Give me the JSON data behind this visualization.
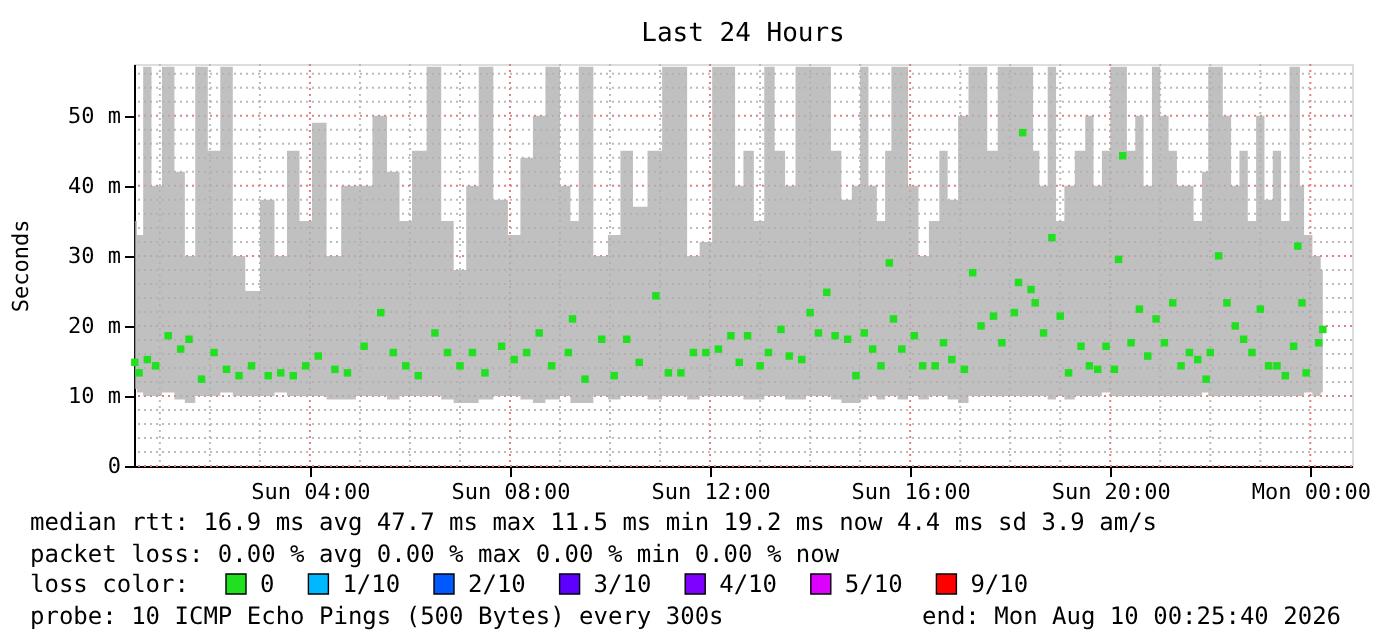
{
  "chart_data": {
    "type": "scatter",
    "title": "Last 24 Hours",
    "ylabel": "Seconds",
    "xlim": [
      "2026-08-09T00:29",
      "2026-08-10T00:50"
    ],
    "ylim": [
      0,
      57.4
    ],
    "xticks": [
      {
        "value": "2026-08-09T01:00",
        "label": null
      },
      {
        "value": "2026-08-09T02:00",
        "label": null
      },
      {
        "value": "2026-08-09T03:00",
        "label": null
      },
      {
        "value": "2026-08-09T04:00",
        "label": "Sun 04:00"
      },
      {
        "value": "2026-08-09T05:00",
        "label": null
      },
      {
        "value": "2026-08-09T06:00",
        "label": null
      },
      {
        "value": "2026-08-09T07:00",
        "label": null
      },
      {
        "value": "2026-08-09T08:00",
        "label": "Sun 08:00"
      },
      {
        "value": "2026-08-09T09:00",
        "label": null
      },
      {
        "value": "2026-08-09T10:00",
        "label": null
      },
      {
        "value": "2026-08-09T11:00",
        "label": null
      },
      {
        "value": "2026-08-09T12:00",
        "label": "Sun 12:00"
      },
      {
        "value": "2026-08-09T13:00",
        "label": null
      },
      {
        "value": "2026-08-09T14:00",
        "label": null
      },
      {
        "value": "2026-08-09T15:00",
        "label": null
      },
      {
        "value": "2026-08-09T16:00",
        "label": "Sun 16:00"
      },
      {
        "value": "2026-08-09T17:00",
        "label": null
      },
      {
        "value": "2026-08-09T18:00",
        "label": null
      },
      {
        "value": "2026-08-09T19:00",
        "label": null
      },
      {
        "value": "2026-08-09T20:00",
        "label": "Sun 20:00"
      },
      {
        "value": "2026-08-09T21:00",
        "label": null
      },
      {
        "value": "2026-08-09T22:00",
        "label": null
      },
      {
        "value": "2026-08-09T23:00",
        "label": null
      },
      {
        "value": "2026-08-10T00:00",
        "label": "Mon 00:00"
      }
    ],
    "yticks": [
      0,
      {
        "value": 2,
        "label": null
      },
      {
        "value": 4,
        "label": null
      },
      {
        "value": 6,
        "label": null
      },
      {
        "value": 8,
        "label": null
      },
      {
        "value": 10,
        "label": "10 m"
      },
      {
        "value": 12,
        "label": null
      },
      {
        "value": 14,
        "label": null
      },
      {
        "value": 16,
        "label": null
      },
      {
        "value": 18,
        "label": null
      },
      {
        "value": 20,
        "label": "20 m"
      },
      {
        "value": 22,
        "label": null
      },
      {
        "value": 24,
        "label": null
      },
      {
        "value": 26,
        "label": null
      },
      {
        "value": 28,
        "label": null
      },
      {
        "value": 30,
        "label": "30 m"
      },
      {
        "value": 32,
        "label": null
      },
      {
        "value": 34,
        "label": null
      },
      {
        "value": 36,
        "label": null
      },
      {
        "value": 38,
        "label": null
      },
      {
        "value": 40,
        "label": "40 m"
      },
      {
        "value": 42,
        "label": null
      },
      {
        "value": 44,
        "label": null
      },
      {
        "value": 46,
        "label": null
      },
      {
        "value": 48,
        "label": null
      },
      {
        "value": 50,
        "label": "50 m"
      },
      {
        "value": 52,
        "label": null
      },
      {
        "value": 54,
        "label": null
      },
      {
        "value": 56,
        "label": null
      }
    ],
    "grid": true,
    "legend": "bottom",
    "marker": "square",
    "legend_title": "loss color:",
    "series": [
      {
        "name": "0",
        "color": "#20e020",
        "x": [
          "2026-08-09T00:30",
          "2026-08-09T00:35",
          "2026-08-09T00:45",
          "2026-08-09T00:55",
          "2026-08-09T01:10",
          "2026-08-09T01:25",
          "2026-08-09T01:35",
          "2026-08-09T01:50",
          "2026-08-09T02:05",
          "2026-08-09T02:20",
          "2026-08-09T02:35",
          "2026-08-09T02:50",
          "2026-08-09T03:10",
          "2026-08-09T03:25",
          "2026-08-09T03:40",
          "2026-08-09T03:55",
          "2026-08-09T04:10",
          "2026-08-09T04:30",
          "2026-08-09T04:45",
          "2026-08-09T05:05",
          "2026-08-09T05:25",
          "2026-08-09T05:40",
          "2026-08-09T05:55",
          "2026-08-09T06:10",
          "2026-08-09T06:30",
          "2026-08-09T06:45",
          "2026-08-09T07:00",
          "2026-08-09T07:15",
          "2026-08-09T07:30",
          "2026-08-09T07:50",
          "2026-08-09T08:05",
          "2026-08-09T08:20",
          "2026-08-09T08:35",
          "2026-08-09T08:50",
          "2026-08-09T09:10",
          "2026-08-09T09:15",
          "2026-08-09T09:30",
          "2026-08-09T09:50",
          "2026-08-09T10:05",
          "2026-08-09T10:20",
          "2026-08-09T10:35",
          "2026-08-09T10:55",
          "2026-08-09T11:10",
          "2026-08-09T11:25",
          "2026-08-09T11:40",
          "2026-08-09T11:55",
          "2026-08-09T12:10",
          "2026-08-09T12:25",
          "2026-08-09T12:35",
          "2026-08-09T12:45",
          "2026-08-09T13:00",
          "2026-08-09T13:10",
          "2026-08-09T13:25",
          "2026-08-09T13:35",
          "2026-08-09T13:50",
          "2026-08-09T14:00",
          "2026-08-09T14:10",
          "2026-08-09T14:20",
          "2026-08-09T14:30",
          "2026-08-09T14:45",
          "2026-08-09T14:55",
          "2026-08-09T15:05",
          "2026-08-09T15:15",
          "2026-08-09T15:25",
          "2026-08-09T15:35",
          "2026-08-09T15:40",
          "2026-08-09T15:50",
          "2026-08-09T16:05",
          "2026-08-09T16:15",
          "2026-08-09T16:30",
          "2026-08-09T16:40",
          "2026-08-09T16:50",
          "2026-08-09T17:05",
          "2026-08-09T17:15",
          "2026-08-09T17:25",
          "2026-08-09T17:40",
          "2026-08-09T17:50",
          "2026-08-09T18:05",
          "2026-08-09T18:10",
          "2026-08-09T18:15",
          "2026-08-09T18:25",
          "2026-08-09T18:30",
          "2026-08-09T18:40",
          "2026-08-09T18:50",
          "2026-08-09T19:00",
          "2026-08-09T19:10",
          "2026-08-09T19:25",
          "2026-08-09T19:35",
          "2026-08-09T19:45",
          "2026-08-09T19:55",
          "2026-08-09T20:05",
          "2026-08-09T20:10",
          "2026-08-09T20:15",
          "2026-08-09T20:25",
          "2026-08-09T20:35",
          "2026-08-09T20:45",
          "2026-08-09T20:55",
          "2026-08-09T21:05",
          "2026-08-09T21:15",
          "2026-08-09T21:25",
          "2026-08-09T21:35",
          "2026-08-09T21:45",
          "2026-08-09T21:55",
          "2026-08-09T22:00",
          "2026-08-09T22:10",
          "2026-08-09T22:20",
          "2026-08-09T22:30",
          "2026-08-09T22:40",
          "2026-08-09T22:50",
          "2026-08-09T23:00",
          "2026-08-09T23:10",
          "2026-08-09T23:20",
          "2026-08-09T23:30",
          "2026-08-09T23:40",
          "2026-08-09T23:45",
          "2026-08-09T23:50",
          "2026-08-09T23:55",
          "2026-08-10T00:10",
          "2026-08-10T00:15"
        ],
        "values": [
          14.8,
          13.3,
          15.2,
          14.3,
          18.6,
          16.7,
          18.1,
          12.4,
          16.2,
          13.8,
          12.9,
          14.3,
          12.9,
          13.3,
          12.9,
          14.3,
          15.7,
          13.8,
          13.3,
          17.1,
          21.9,
          16.2,
          14.3,
          12.9,
          19,
          16.2,
          14.3,
          16.2,
          13.3,
          17.1,
          15.2,
          16.2,
          19,
          14.3,
          16.2,
          21,
          12.4,
          18.1,
          12.9,
          18.1,
          14.8,
          24.3,
          13.3,
          13.3,
          16.2,
          16.2,
          16.7,
          18.6,
          14.8,
          18.6,
          14.3,
          16.2,
          19.5,
          15.7,
          15.2,
          21.9,
          19,
          24.8,
          18.6,
          18.1,
          12.9,
          19,
          16.7,
          14.3,
          29,
          21,
          16.7,
          18.6,
          14.3,
          14.3,
          17.6,
          15.2,
          13.8,
          27.6,
          20,
          21.4,
          17.6,
          21.9,
          26.2,
          47.6,
          25.2,
          23.3,
          19,
          32.6,
          21.4,
          13.3,
          17.1,
          14.3,
          13.8,
          17.1,
          13.8,
          29.5,
          44.3,
          17.6,
          22.4,
          15.7,
          21,
          17.6,
          23.3,
          14.3,
          16.2,
          15.2,
          12.4,
          16.2,
          30,
          23.3,
          20,
          18.1,
          16.2,
          22.4,
          14.3,
          14.3,
          12.9,
          17.1,
          31.4,
          23.3,
          13.3,
          17.6,
          19.5
        ],
        "lower": [
          11,
          10.5,
          10,
          10,
          10.5,
          9.5,
          9,
          10,
          10,
          10.5,
          10,
          10,
          10,
          10.5,
          10,
          10,
          10,
          9.5,
          9.5,
          10,
          10,
          9.5,
          10,
          10,
          10,
          9.5,
          9,
          9,
          9.5,
          10,
          10,
          9.5,
          9,
          9.5,
          10,
          9,
          9,
          10,
          9.5,
          10,
          10,
          9.5,
          10,
          10,
          9.5,
          10,
          10,
          10,
          10,
          9.5,
          9.5,
          10,
          10,
          9.5,
          9.5,
          10,
          10,
          10,
          9.5,
          9,
          9,
          9.5,
          10,
          9.5,
          10,
          10,
          9.5,
          10,
          9.5,
          10,
          10,
          9.5,
          9,
          10,
          10,
          10,
          10,
          10,
          10,
          10,
          10,
          10,
          10,
          9.5,
          10,
          9.5,
          10,
          10,
          10,
          10.5,
          10,
          10,
          10,
          10,
          10,
          10,
          10,
          10,
          10,
          10,
          10,
          10,
          10.5,
          10,
          10,
          10,
          10,
          10,
          10,
          10,
          10,
          10,
          10,
          10,
          10,
          10,
          10.5,
          10,
          10.5
        ],
        "upper": [
          35,
          33,
          57,
          40,
          57,
          42,
          30,
          57,
          45,
          57,
          30,
          25,
          38,
          30,
          45,
          35,
          49,
          30,
          40,
          40,
          50,
          42,
          35,
          45,
          57,
          35,
          28,
          40,
          57,
          38,
          33,
          44,
          50,
          57,
          40,
          35,
          57,
          30,
          33,
          45,
          37,
          45,
          57,
          57,
          30,
          32,
          57,
          57,
          40,
          45,
          35,
          57,
          45,
          40,
          57,
          57,
          57,
          57,
          45,
          38,
          40,
          57,
          40,
          35,
          45,
          57,
          57,
          40,
          30,
          35,
          45,
          38,
          50,
          57,
          57,
          45,
          57,
          57,
          57,
          57,
          57,
          45,
          40,
          57,
          35,
          40,
          45,
          50,
          40,
          45,
          57,
          57,
          57,
          45,
          50,
          40,
          57,
          50,
          45,
          40,
          40,
          35,
          42,
          57,
          57,
          50,
          40,
          45,
          35,
          50,
          38,
          45,
          35,
          57,
          57,
          40,
          33,
          30,
          28
        ]
      },
      {
        "name": "1/10",
        "color": "#00b8ff"
      },
      {
        "name": "2/10",
        "color": "#0059ff"
      },
      {
        "name": "3/10",
        "color": "#5e00ff"
      },
      {
        "name": "4/10",
        "color": "#7e00ff"
      },
      {
        "name": "5/10",
        "color": "#dd00ff"
      },
      {
        "name": "9/10",
        "color": "#ff0000"
      }
    ],
    "annotations": [
      "median rtt:  16.9 ms avg  47.7 ms max  11.5 ms min  19.2 ms now  4.4 ms sd  3.9   am/s",
      "packet loss: 0.00 % avg  0.00 % max  0.00 % min  0.00 % now",
      "probe:        10 ICMP Echo Pings (500 Bytes) every 300s",
      "end: Mon Aug 10 00:25:40 2026"
    ]
  }
}
